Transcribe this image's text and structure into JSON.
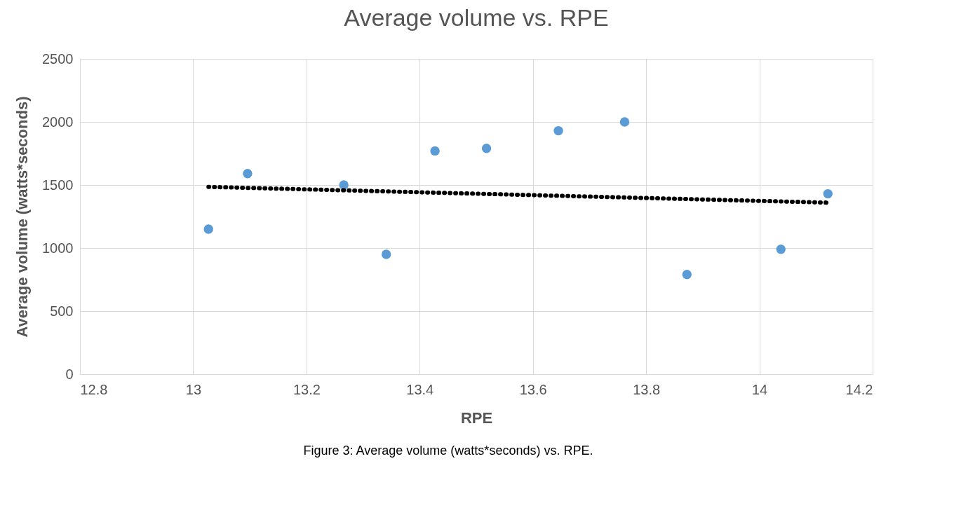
{
  "chart_data": {
    "type": "scatter",
    "title": "Average volume vs. RPE",
    "xlabel": "RPE",
    "ylabel": "Average volume (watts*seconds)",
    "xlim": [
      12.8,
      14.2
    ],
    "xticks": [
      12.8,
      13,
      13.2,
      13.4,
      13.6,
      13.8,
      14,
      14.2
    ],
    "ylim": [
      0,
      2500
    ],
    "yticks": [
      0,
      500,
      1000,
      1500,
      2000,
      2500
    ],
    "grid": true,
    "series": [
      {
        "color": "#5b9bd5",
        "marker": "circle",
        "x": [
          13.027,
          13.096,
          13.266,
          13.341,
          13.427,
          13.518,
          13.645,
          13.762,
          13.872,
          14.038,
          14.121
        ],
        "values": [
          1150,
          1590,
          1500,
          950,
          1770,
          1790,
          1930,
          2000,
          790,
          990,
          1430
        ]
      },
      {
        "type": "line",
        "line_style": "dotted",
        "color": "#000000",
        "x": [
          13.027,
          14.121
        ],
        "values": [
          1485,
          1360
        ]
      }
    ],
    "annotations": [
      "Figure 3: Average volume (watts*seconds) vs. RPE."
    ]
  }
}
